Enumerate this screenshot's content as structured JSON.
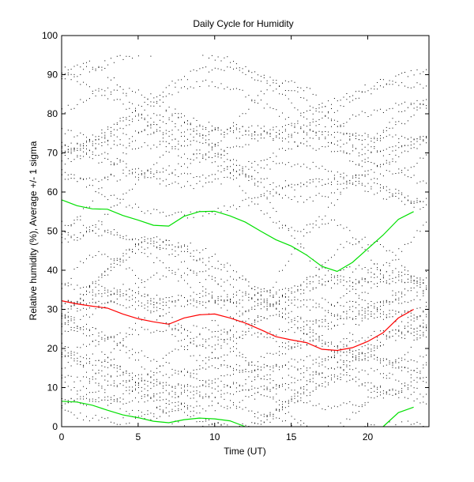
{
  "chart_data": {
    "type": "line",
    "title": "Daily Cycle for Humidity",
    "xlabel": "Time (UT)",
    "ylabel": "Relative humidity (%), Average +/- 1 sigma",
    "xlim": [
      0,
      24
    ],
    "ylim": [
      0,
      100
    ],
    "xticks": [
      0,
      5,
      10,
      15,
      20
    ],
    "yticks": [
      0,
      10,
      20,
      30,
      40,
      50,
      60,
      70,
      80,
      90,
      100
    ],
    "grid": false,
    "legend": "none",
    "colors": {
      "mean": "#ff0000",
      "sigma": "#00e000",
      "scatter": "#000000"
    },
    "series": [
      {
        "name": "average",
        "color": "#ff0000",
        "x": [
          0,
          1,
          2,
          3,
          4,
          5,
          6,
          7,
          8,
          9,
          10,
          11,
          12,
          13,
          14,
          15,
          16,
          17,
          18,
          19,
          20,
          21,
          22,
          23
        ],
        "y": [
          32.2,
          31.4,
          30.8,
          30.3,
          28.8,
          27.6,
          26.8,
          26.2,
          27.8,
          28.6,
          28.8,
          27.8,
          26.5,
          24.8,
          23.0,
          22.2,
          21.5,
          19.8,
          19.5,
          20.2,
          21.8,
          24.0,
          27.8,
          30.0
        ]
      },
      {
        "name": "average + 1 sigma",
        "color": "#00e000",
        "x": [
          0,
          1,
          2,
          3,
          4,
          5,
          6,
          7,
          8,
          9,
          10,
          11,
          12,
          13,
          14,
          15,
          16,
          17,
          18,
          19,
          20,
          21,
          22,
          23
        ],
        "y": [
          58.0,
          56.5,
          55.7,
          55.6,
          54.0,
          52.8,
          51.5,
          51.3,
          53.8,
          55.0,
          55.1,
          53.9,
          52.3,
          50.0,
          47.8,
          46.2,
          43.9,
          41.0,
          39.7,
          42.0,
          45.5,
          49.0,
          53.0,
          55.0
        ]
      },
      {
        "name": "average - 1 sigma",
        "color": "#00e000",
        "segments": [
          {
            "x": [
              0,
              1,
              2,
              3,
              4,
              5,
              6,
              7,
              8,
              9,
              10,
              11,
              12
            ],
            "y": [
              6.5,
              6.3,
              5.5,
              4.2,
              3.0,
              2.3,
              1.4,
              1.0,
              1.8,
              2.2,
              2.0,
              1.5,
              0
            ]
          },
          {
            "x": [
              21,
              22,
              23
            ],
            "y": [
              0,
              3.6,
              5.0
            ]
          }
        ]
      }
    ]
  }
}
